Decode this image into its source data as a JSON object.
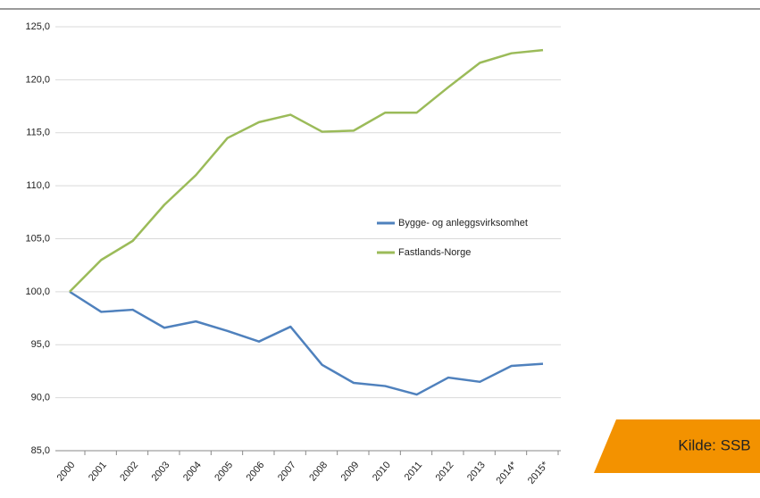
{
  "chart_data": {
    "type": "line",
    "categories": [
      "2000",
      "2001",
      "2002",
      "2003",
      "2004",
      "2005",
      "2006",
      "2007",
      "2008",
      "2009",
      "2010",
      "2011",
      "2012",
      "2013",
      "2014*",
      "2015*"
    ],
    "series": [
      {
        "name": "Bygge- og anleggsvirksomhet",
        "color": "#4f81bd",
        "values": [
          100,
          98.1,
          98.3,
          96.6,
          97.2,
          96.3,
          95.3,
          96.7,
          93.1,
          91.4,
          91.1,
          90.3,
          91.9,
          91.5,
          93.0,
          93.2
        ]
      },
      {
        "name": "Fastlands-Norge",
        "color": "#9bbb59",
        "values": [
          100,
          103,
          104.8,
          108.2,
          111,
          114.5,
          116,
          116.7,
          115.1,
          115.2,
          116.9,
          116.9,
          119.3,
          121.6,
          122.5,
          122.8
        ]
      }
    ],
    "ylim": [
      85,
      125
    ],
    "yticks": [
      {
        "value": 85,
        "label": "85,0"
      },
      {
        "value": 90,
        "label": "90,0"
      },
      {
        "value": 95,
        "label": "95,0"
      },
      {
        "value": 100,
        "label": "100,0"
      },
      {
        "value": 105,
        "label": "105,0"
      },
      {
        "value": 110,
        "label": "110,0"
      },
      {
        "value": 115,
        "label": "115,0"
      },
      {
        "value": 120,
        "label": "120,0"
      },
      {
        "value": 125,
        "label": "125,0"
      }
    ],
    "grid": true,
    "legend": "right"
  },
  "source": "Kilde: SSB"
}
